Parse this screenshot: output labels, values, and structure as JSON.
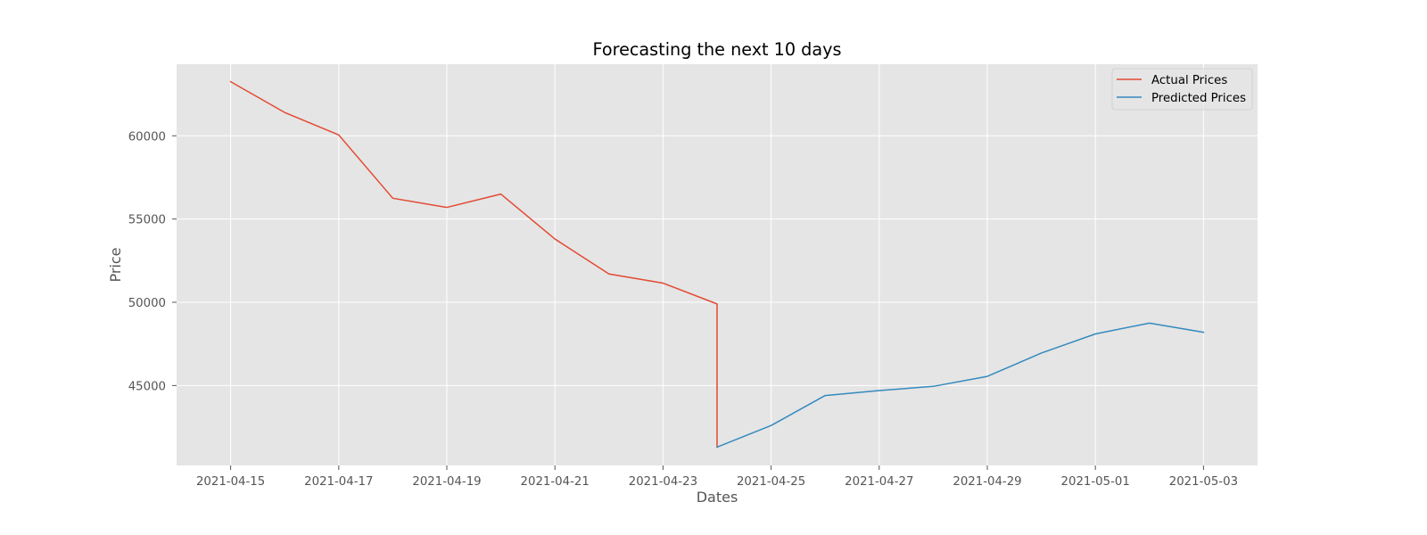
{
  "chart_data": {
    "type": "line",
    "title": "Forecasting the next 10 days",
    "xlabel": "Dates",
    "ylabel": "Price",
    "x_tick_labels": [
      "2021-04-15",
      "2021-04-17",
      "2021-04-19",
      "2021-04-21",
      "2021-04-23",
      "2021-04-25",
      "2021-04-27",
      "2021-04-29",
      "2021-05-01",
      "2021-05-03"
    ],
    "y_tick_labels": [
      "45000",
      "50000",
      "55000",
      "60000"
    ],
    "xlim": [
      "2021-04-14",
      "2021-05-04"
    ],
    "ylim": [
      40200,
      64300
    ],
    "grid": true,
    "legend_position": "top-right",
    "style": {
      "plot_background": "#e5e5e5",
      "grid_color": "#ffffff"
    },
    "series": [
      {
        "name": "Actual Prices",
        "color": "#e24a33",
        "x": [
          "2021-04-15",
          "2021-04-16",
          "2021-04-17",
          "2021-04-18",
          "2021-04-19",
          "2021-04-20",
          "2021-04-21",
          "2021-04-22",
          "2021-04-23",
          "2021-04-24",
          "2021-04-24"
        ],
        "y": [
          63250,
          61400,
          60050,
          56250,
          55700,
          56500,
          53800,
          51700,
          51150,
          49900,
          41300
        ]
      },
      {
        "name": "Predicted Prices",
        "color": "#348abd",
        "x": [
          "2021-04-24",
          "2021-04-25",
          "2021-04-26",
          "2021-04-27",
          "2021-04-28",
          "2021-04-29",
          "2021-04-30",
          "2021-05-01",
          "2021-05-02",
          "2021-05-03"
        ],
        "y": [
          41300,
          42600,
          44400,
          44700,
          44950,
          45550,
          46950,
          48100,
          48750,
          48200
        ]
      }
    ]
  }
}
